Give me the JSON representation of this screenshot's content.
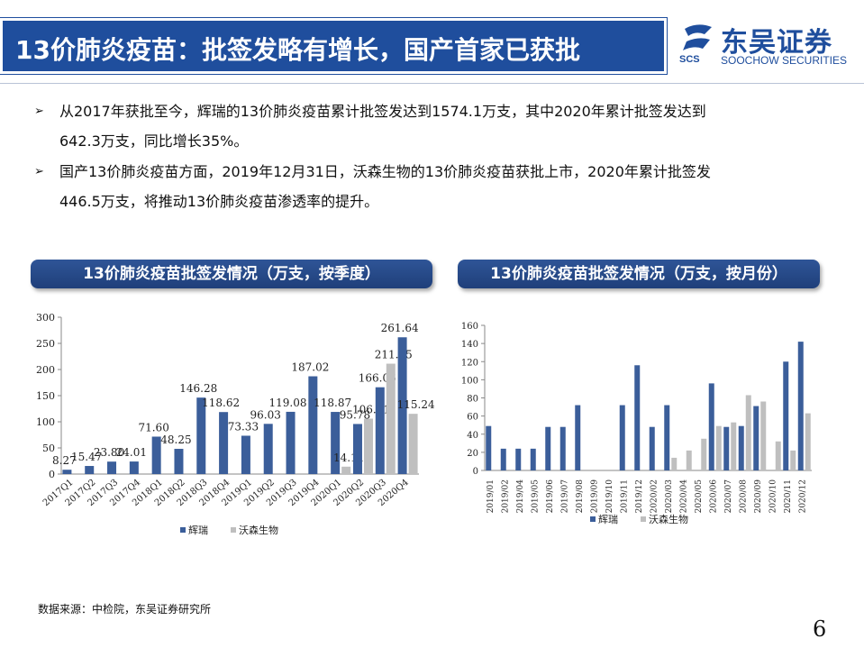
{
  "header": {
    "title": "13价肺炎疫苗：批签发略有增长，国产首家已获批",
    "logo_cn": "东吴证券",
    "logo_en": "SOOCHOW SECURITIES",
    "logo_abbr": "SCS"
  },
  "bullets": [
    {
      "mark": "➢",
      "line1": "从2017年获批至今，辉瑞的13价肺炎疫苗累计批签发达到1574.1万支，其中2020年累计批签发达到",
      "line2": "642.3万支，同比增长35%。"
    },
    {
      "mark": "➢",
      "line1": "国产13价肺炎疫苗方面，2019年12月31日，沃森生物的13价肺炎疫苗获批上市，2020年累计批签发",
      "line2": "446.5万支，将推动13价肺炎疫苗渗透率的提升。"
    }
  ],
  "colors": {
    "pfizer": "#3b5e9a",
    "walvax": "#bfbfbf",
    "brand": "#1f4e9d"
  },
  "chart_data": [
    {
      "type": "bar",
      "title": "13价肺炎疫苗批签发情况（万支，按季度）",
      "categories": [
        "2017Q1",
        "2017Q2",
        "2017Q3",
        "2017Q4",
        "2018Q1",
        "2018Q2",
        "2018Q3",
        "2018Q4",
        "2019Q1",
        "2019Q2",
        "2019Q3",
        "2019Q4",
        "2020Q1",
        "2020Q2",
        "2020Q3",
        "2020Q4"
      ],
      "series": [
        {
          "name": "辉瑞",
          "values": [
            8.27,
            15.47,
            23.8,
            24.01,
            71.6,
            48.25,
            146.28,
            118.62,
            73.33,
            96.03,
            119.08,
            187.02,
            118.87,
            95.78,
            166.06,
            261.64
          ],
          "labels": [
            "8.27",
            "15.47",
            "23.80",
            "24.01",
            "71.60",
            "48.25",
            "146.28",
            "118.62",
            "73.33",
            "96.03",
            "119.08",
            "187.02",
            "118.87",
            "95.78",
            "166.06",
            "261.64"
          ]
        },
        {
          "name": "沃森生物",
          "values": [
            null,
            null,
            null,
            null,
            null,
            null,
            null,
            null,
            null,
            null,
            null,
            null,
            14.11,
            106.01,
            211.15,
            115.24
          ],
          "labels": [
            "",
            "",
            "",
            "",
            "",
            "",
            "",
            "",
            "",
            "",
            "",
            "",
            "14.11",
            "106.01",
            "211.15",
            "115.24"
          ]
        }
      ],
      "yticks": [
        "0",
        "50",
        "100",
        "150",
        "200",
        "250",
        "300"
      ],
      "ylim": [
        0,
        300
      ],
      "legend": "bottom"
    },
    {
      "type": "bar",
      "title": "13价肺炎疫苗批签发情况（万支，按月份）",
      "categories": [
        "2019/01",
        "2019/02",
        "2019/04",
        "2019/05",
        "2019/06",
        "2019/07",
        "2019/08",
        "2019/09",
        "2019/10",
        "2019/11",
        "2019/12",
        "2020/02",
        "2020/03",
        "2020/04",
        "2020/05",
        "2020/06",
        "2020/07",
        "2020/08",
        "2020/09",
        "2020/10",
        "2020/11",
        "2020/12"
      ],
      "series": [
        {
          "name": "辉瑞",
          "values": [
            49,
            24,
            24,
            24,
            48,
            48,
            72,
            0,
            0,
            72,
            116,
            48,
            72,
            0,
            0,
            96,
            48,
            49,
            71,
            0,
            120,
            142
          ]
        },
        {
          "name": "沃森生物",
          "values": [
            0,
            0,
            0,
            0,
            0,
            0,
            0,
            0,
            0,
            0,
            0,
            0,
            14,
            22,
            35,
            49,
            53,
            83,
            76,
            32,
            22,
            63
          ]
        }
      ],
      "yticks": [
        "0",
        "20",
        "40",
        "60",
        "80",
        "100",
        "120",
        "140",
        "160"
      ],
      "ylim": [
        0,
        160
      ],
      "legend": "bottom"
    }
  ],
  "source": "数据来源：中检院，东吴证券研究所",
  "page_number": "6"
}
